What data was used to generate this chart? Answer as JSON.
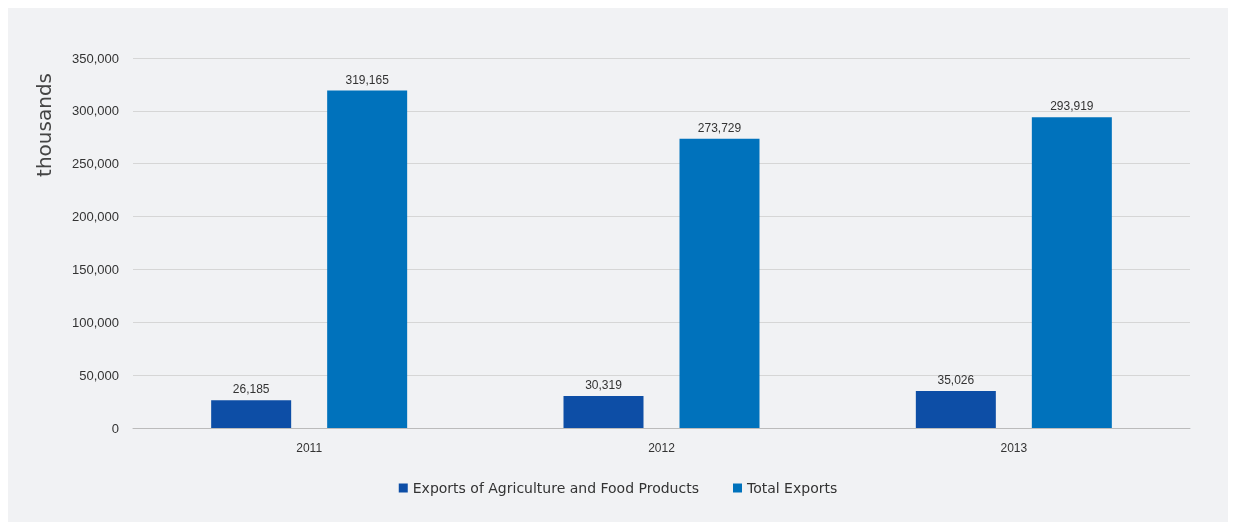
{
  "chart_data": {
    "type": "bar",
    "ylabel": "thousands",
    "categories": [
      "2011",
      "2012",
      "2013"
    ],
    "series": [
      {
        "name": "Exports of Agriculture and Food Products",
        "color": "#0d4ea6",
        "values": [
          26185,
          30319,
          35026
        ],
        "value_labels": [
          "26,185",
          "30,319",
          "35,026"
        ]
      },
      {
        "name": "Total Exports",
        "color": "#0072bc",
        "values": [
          319165,
          273729,
          293919
        ],
        "value_labels": [
          "319,165",
          "273,729",
          "293,919"
        ]
      }
    ],
    "ylim": [
      0,
      350000
    ],
    "yticks": [
      0,
      {
        "value": 50000,
        "label": "50,000"
      },
      {
        "value": 100000,
        "label": "100,000"
      },
      {
        "value": 150000,
        "label": "150,000"
      },
      {
        "value": 200000,
        "label": "200,000"
      },
      {
        "value": 250000,
        "label": "250,000"
      },
      {
        "value": 300000,
        "label": "300,000"
      },
      {
        "value": 350000,
        "label": "350,000"
      }
    ],
    "grid": "y",
    "legend": "bottom"
  }
}
